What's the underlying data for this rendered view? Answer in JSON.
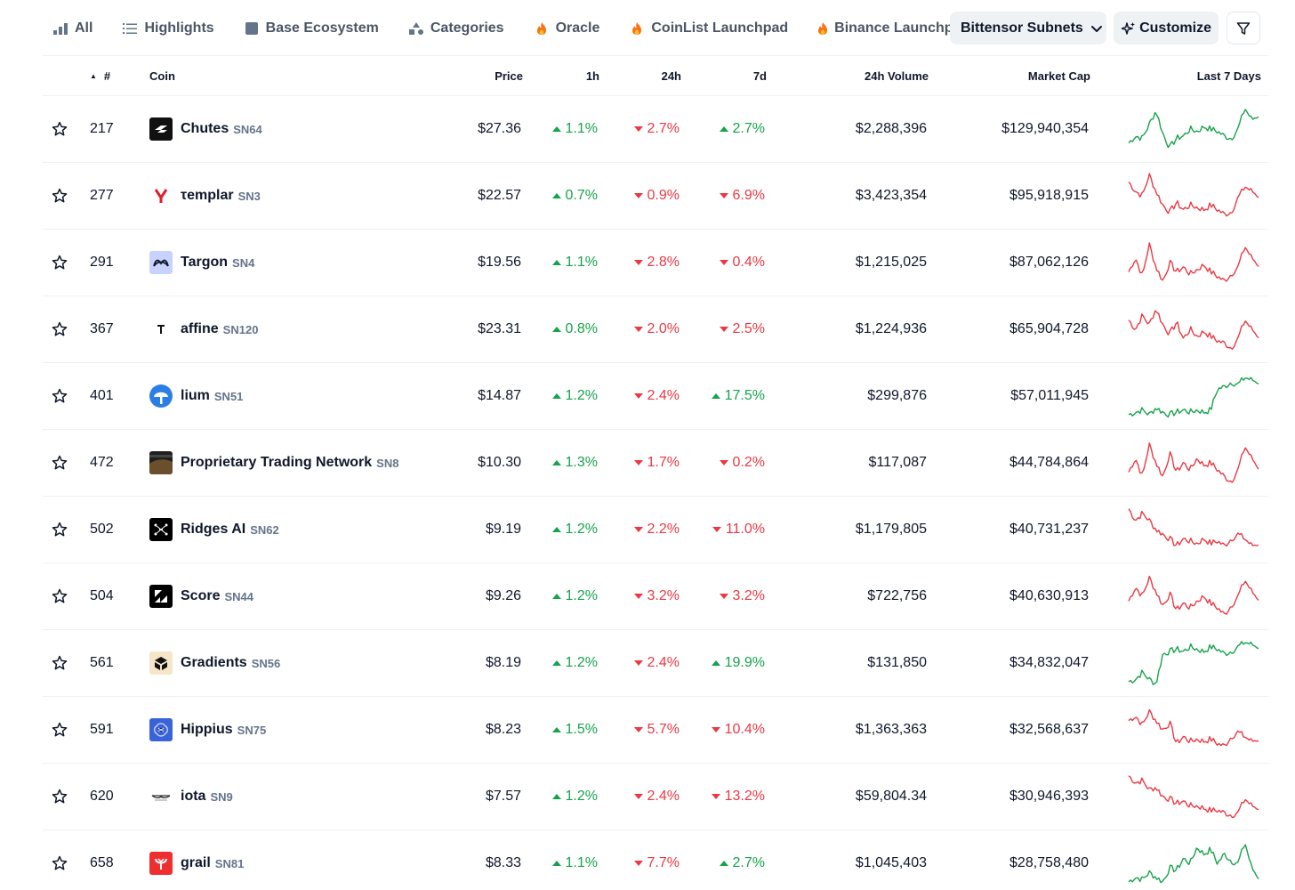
{
  "colors": {
    "up": "#16a34a",
    "down": "#ea3943",
    "accent_bg": "#eff2f5"
  },
  "tabs": [
    {
      "label": "All",
      "icon": "bar-chart-icon"
    },
    {
      "label": "Highlights",
      "icon": "list-icon"
    },
    {
      "label": "Base Ecosystem",
      "icon": "square-icon"
    },
    {
      "label": "Categories",
      "icon": "shapes-icon"
    },
    {
      "label": "Oracle",
      "icon": "fire-icon"
    },
    {
      "label": "CoinList Launchpad",
      "icon": "fire-icon"
    },
    {
      "label": "Binance Launchpo",
      "icon": "fire-icon"
    }
  ],
  "active_tab": {
    "label": "Bittensor Subnets",
    "icon": "chevron-down-icon"
  },
  "customize": {
    "label": "Customize",
    "icon": "sparkle-icon"
  },
  "filter": {
    "icon": "filter-icon"
  },
  "columns": {
    "rank": "#",
    "coin": "Coin",
    "price": "Price",
    "h1": "1h",
    "h24": "24h",
    "d7": "7d",
    "volume": "24h Volume",
    "mcap": "Market Cap",
    "spark": "Last 7 Days"
  },
  "rows": [
    {
      "rank": "217",
      "name": "Chutes",
      "symbol": "SN64",
      "price": "$27.36",
      "h1": "1.1%",
      "h1_dir": "up",
      "h24": "2.7%",
      "h24_dir": "down",
      "d7": "2.7%",
      "d7_dir": "up",
      "volume": "$2,288,396",
      "mcap": "$129,940,354",
      "trend": "up",
      "spark": [
        0.2,
        0.35,
        0.3,
        0.6,
        0.9,
        0.4,
        0.1,
        0.3,
        0.35,
        0.5,
        0.45,
        0.55,
        0.5,
        0.45,
        0.35,
        0.3,
        0.5,
        0.95,
        0.7,
        0.8
      ]
    },
    {
      "rank": "277",
      "name": "τemplar",
      "symbol": "SN3",
      "price": "$22.57",
      "h1": "0.7%",
      "h1_dir": "up",
      "h24": "0.9%",
      "h24_dir": "down",
      "d7": "6.9%",
      "d7_dir": "down",
      "volume": "$3,423,354",
      "mcap": "$95,918,915",
      "trend": "down",
      "spark": [
        0.8,
        0.6,
        0.5,
        0.95,
        0.6,
        0.3,
        0.15,
        0.35,
        0.2,
        0.3,
        0.25,
        0.2,
        0.3,
        0.2,
        0.1,
        0.15,
        0.45,
        0.7,
        0.6,
        0.5
      ]
    },
    {
      "rank": "291",
      "name": "Targon",
      "symbol": "SN4",
      "price": "$19.56",
      "h1": "1.1%",
      "h1_dir": "up",
      "h24": "2.8%",
      "h24_dir": "down",
      "d7": "0.4%",
      "d7_dir": "down",
      "volume": "$1,215,025",
      "mcap": "$87,062,126",
      "trend": "down",
      "spark": [
        0.3,
        0.6,
        0.2,
        0.9,
        0.4,
        0.1,
        0.5,
        0.3,
        0.4,
        0.25,
        0.35,
        0.45,
        0.3,
        0.2,
        0.1,
        0.25,
        0.4,
        0.85,
        0.6,
        0.45
      ]
    },
    {
      "rank": "367",
      "name": "affine",
      "symbol": "SN120",
      "price": "$23.31",
      "h1": "0.8%",
      "h1_dir": "up",
      "h24": "2.0%",
      "h24_dir": "down",
      "d7": "2.5%",
      "d7_dir": "down",
      "volume": "$1,224,936",
      "mcap": "$65,904,728",
      "trend": "down",
      "spark": [
        0.7,
        0.5,
        0.8,
        0.6,
        0.95,
        0.6,
        0.4,
        0.65,
        0.3,
        0.5,
        0.35,
        0.45,
        0.35,
        0.25,
        0.2,
        0.1,
        0.3,
        0.7,
        0.5,
        0.35
      ]
    },
    {
      "rank": "401",
      "name": "lium",
      "symbol": "SN51",
      "price": "$14.87",
      "h1": "1.2%",
      "h1_dir": "up",
      "h24": "2.4%",
      "h24_dir": "down",
      "d7": "17.5%",
      "d7_dir": "up",
      "volume": "$299,876",
      "mcap": "$57,011,945",
      "trend": "up",
      "spark": [
        0.1,
        0.15,
        0.2,
        0.1,
        0.25,
        0.15,
        0.1,
        0.15,
        0.2,
        0.15,
        0.2,
        0.15,
        0.2,
        0.65,
        0.7,
        0.8,
        0.75,
        0.9,
        0.85,
        0.8
      ]
    },
    {
      "rank": "472",
      "name": "Proprietary Trading Network",
      "symbol": "SN8",
      "price": "$10.30",
      "h1": "1.3%",
      "h1_dir": "up",
      "h24": "1.7%",
      "h24_dir": "down",
      "d7": "0.2%",
      "d7_dir": "down",
      "volume": "$117,087",
      "mcap": "$44,784,864",
      "trend": "down",
      "spark": [
        0.3,
        0.6,
        0.2,
        0.9,
        0.5,
        0.2,
        0.7,
        0.3,
        0.5,
        0.35,
        0.6,
        0.45,
        0.5,
        0.35,
        0.2,
        0.1,
        0.35,
        0.85,
        0.6,
        0.4
      ]
    },
    {
      "rank": "502",
      "name": "Ridges AI",
      "symbol": "SN62",
      "price": "$9.19",
      "h1": "1.2%",
      "h1_dir": "up",
      "h24": "2.2%",
      "h24_dir": "down",
      "d7": "11.0%",
      "d7_dir": "down",
      "volume": "$1,179,805",
      "mcap": "$40,731,237",
      "trend": "down",
      "spark": [
        0.95,
        0.7,
        0.85,
        0.7,
        0.5,
        0.4,
        0.3,
        0.15,
        0.3,
        0.25,
        0.2,
        0.3,
        0.2,
        0.25,
        0.15,
        0.3,
        0.4,
        0.3,
        0.15,
        0.2
      ]
    },
    {
      "rank": "504",
      "name": "Score",
      "symbol": "SN44",
      "price": "$9.26",
      "h1": "1.2%",
      "h1_dir": "up",
      "h24": "3.2%",
      "h24_dir": "down",
      "d7": "3.2%",
      "d7_dir": "down",
      "volume": "$722,756",
      "mcap": "$40,630,913",
      "trend": "down",
      "spark": [
        0.4,
        0.7,
        0.5,
        0.9,
        0.6,
        0.3,
        0.55,
        0.2,
        0.35,
        0.25,
        0.4,
        0.5,
        0.35,
        0.25,
        0.1,
        0.3,
        0.5,
        0.85,
        0.6,
        0.45
      ]
    },
    {
      "rank": "561",
      "name": "Gradients",
      "symbol": "SN56",
      "price": "$8.19",
      "h1": "1.2%",
      "h1_dir": "up",
      "h24": "2.4%",
      "h24_dir": "down",
      "d7": "19.9%",
      "d7_dir": "up",
      "volume": "$131,850",
      "mcap": "$34,832,047",
      "trend": "up",
      "spark": [
        0.1,
        0.15,
        0.3,
        0.15,
        0.05,
        0.7,
        0.75,
        0.8,
        0.75,
        0.85,
        0.8,
        0.75,
        0.85,
        0.8,
        0.7,
        0.75,
        0.85,
        0.95,
        0.9,
        0.85
      ]
    },
    {
      "rank": "591",
      "name": "Hippius",
      "symbol": "SN75",
      "price": "$8.23",
      "h1": "1.5%",
      "h1_dir": "up",
      "h24": "5.7%",
      "h24_dir": "down",
      "d7": "10.4%",
      "d7_dir": "down",
      "volume": "$1,363,363",
      "mcap": "$32,568,637",
      "trend": "down",
      "spark": [
        0.7,
        0.8,
        0.6,
        0.9,
        0.7,
        0.5,
        0.65,
        0.2,
        0.35,
        0.25,
        0.3,
        0.25,
        0.3,
        0.2,
        0.15,
        0.35,
        0.45,
        0.35,
        0.25,
        0.3
      ]
    },
    {
      "rank": "620",
      "name": "iota",
      "symbol": "SN9",
      "price": "$7.57",
      "h1": "1.2%",
      "h1_dir": "up",
      "h24": "2.4%",
      "h24_dir": "down",
      "d7": "13.2%",
      "d7_dir": "down",
      "volume": "$59,804.34",
      "mcap": "$30,946,393",
      "trend": "down",
      "spark": [
        0.95,
        0.8,
        0.85,
        0.65,
        0.7,
        0.5,
        0.45,
        0.35,
        0.4,
        0.3,
        0.3,
        0.25,
        0.2,
        0.2,
        0.15,
        0.1,
        0.15,
        0.45,
        0.3,
        0.25
      ]
    },
    {
      "rank": "658",
      "name": "grail",
      "symbol": "SN81",
      "price": "$8.33",
      "h1": "1.1%",
      "h1_dir": "up",
      "h24": "7.7%",
      "h24_dir": "down",
      "d7": "2.7%",
      "d7_dir": "up",
      "volume": "$1,045,403",
      "mcap": "$28,758,480",
      "trend": "up",
      "spark": [
        0.1,
        0.2,
        0.15,
        0.3,
        0.2,
        0.1,
        0.4,
        0.35,
        0.6,
        0.5,
        0.85,
        0.7,
        0.8,
        0.5,
        0.7,
        0.55,
        0.5,
        0.95,
        0.4,
        0.2
      ]
    }
  ]
}
